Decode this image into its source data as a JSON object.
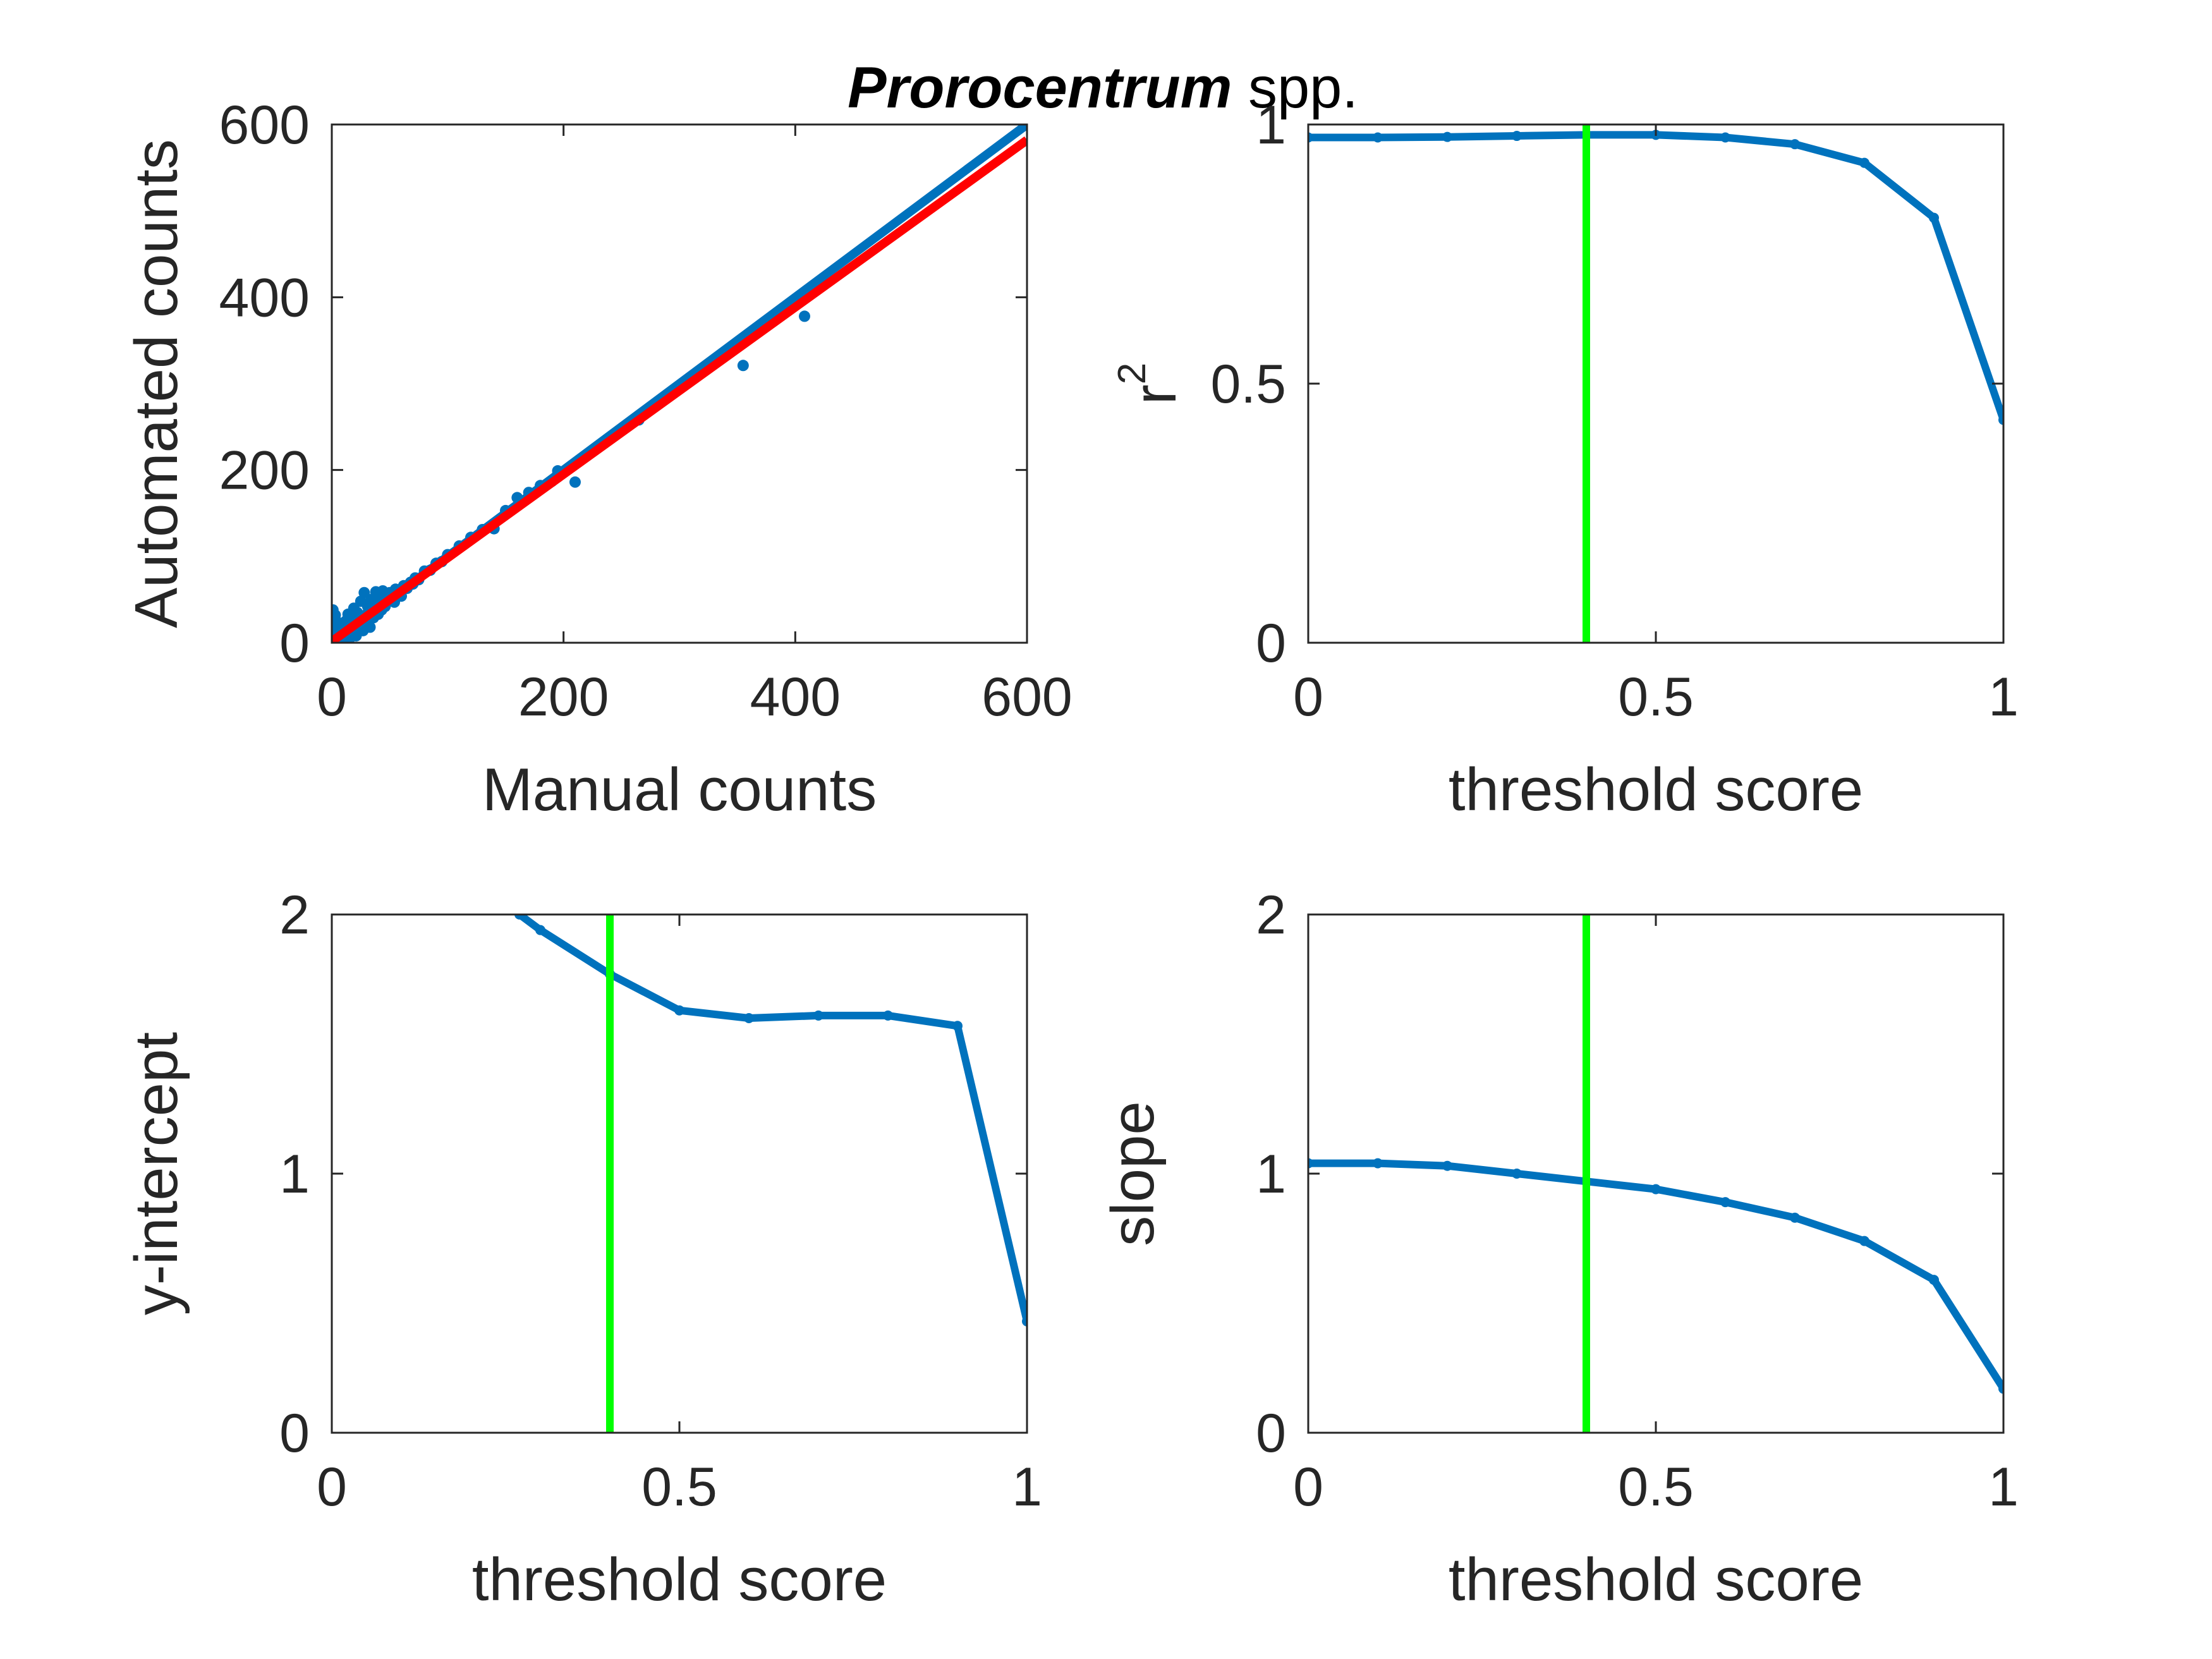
{
  "figure": {
    "title_emph": "Prorocentrum",
    "title_rest": " spp."
  },
  "chart_data": [
    {
      "type": "scatter",
      "xlabel": "Manual counts",
      "ylabel": "Automated counts",
      "xlim": [
        0,
        600
      ],
      "ylim": [
        0,
        600
      ],
      "xticks": [
        "0",
        "200",
        "400",
        "600"
      ],
      "yticks": [
        "0",
        "200",
        "400",
        "600"
      ],
      "grid": false,
      "points_color": "#0072BD",
      "points": [
        [
          0,
          0
        ],
        [
          1,
          2
        ],
        [
          2,
          5
        ],
        [
          3,
          12
        ],
        [
          2,
          18
        ],
        [
          4,
          25
        ],
        [
          3,
          32
        ],
        [
          1,
          38
        ],
        [
          5,
          8
        ],
        [
          6,
          15
        ],
        [
          7,
          22
        ],
        [
          8,
          4
        ],
        [
          9,
          11
        ],
        [
          10,
          18
        ],
        [
          11,
          3
        ],
        [
          12,
          25
        ],
        [
          13,
          9
        ],
        [
          14,
          33
        ],
        [
          15,
          16
        ],
        [
          16,
          6
        ],
        [
          17,
          28
        ],
        [
          18,
          12
        ],
        [
          19,
          40
        ],
        [
          20,
          21
        ],
        [
          21,
          8
        ],
        [
          22,
          35
        ],
        [
          23,
          17
        ],
        [
          24,
          27
        ],
        [
          25,
          48
        ],
        [
          26,
          20
        ],
        [
          27,
          14
        ],
        [
          28,
          58
        ],
        [
          29,
          32
        ],
        [
          30,
          24
        ],
        [
          31,
          42
        ],
        [
          32,
          28
        ],
        [
          33,
          18
        ],
        [
          34,
          50
        ],
        [
          35,
          36
        ],
        [
          36,
          29
        ],
        [
          37,
          44
        ],
        [
          38,
          59
        ],
        [
          39,
          39
        ],
        [
          40,
          33
        ],
        [
          41,
          52
        ],
        [
          42,
          45
        ],
        [
          43,
          38
        ],
        [
          44,
          60
        ],
        [
          45,
          47
        ],
        [
          46,
          42
        ],
        [
          47,
          55
        ],
        [
          48,
          49
        ],
        [
          50,
          58
        ],
        [
          52,
          52
        ],
        [
          54,
          47
        ],
        [
          55,
          62
        ],
        [
          57,
          57
        ],
        [
          60,
          54
        ],
        [
          62,
          66
        ],
        [
          65,
          63
        ],
        [
          68,
          70
        ],
        [
          70,
          68
        ],
        [
          72,
          75
        ],
        [
          75,
          73
        ],
        [
          80,
          83
        ],
        [
          85,
          84
        ],
        [
          90,
          92
        ],
        [
          95,
          94
        ],
        [
          100,
          102
        ],
        [
          110,
          112
        ],
        [
          120,
          122
        ],
        [
          130,
          131
        ],
        [
          140,
          132
        ],
        [
          150,
          153
        ],
        [
          160,
          168
        ],
        [
          170,
          174
        ],
        [
          180,
          182
        ],
        [
          190,
          187
        ],
        [
          195,
          199
        ],
        [
          210,
          186
        ],
        [
          265,
          258
        ],
        [
          355,
          321
        ],
        [
          408,
          378
        ]
      ],
      "lines": [
        {
          "name": "",
          "color": "#0072BD",
          "x": [
            0,
            600
          ],
          "y": [
            0,
            600
          ]
        },
        {
          "name": "",
          "color": "#FF0000",
          "x": [
            0,
            600
          ],
          "y": [
            1.5,
            582
          ]
        }
      ]
    },
    {
      "type": "line",
      "xlabel": "threshold score",
      "ylabel": "r",
      "ylabel_super": "2",
      "xlim": [
        0,
        1
      ],
      "ylim": [
        0,
        1
      ],
      "xticks": [
        "0",
        "0.5",
        "1"
      ],
      "yticks": [
        "0",
        "0.5",
        "1"
      ],
      "grid": false,
      "series": [
        {
          "name": "",
          "color": "#0072BD",
          "x": [
            0,
            0.1,
            0.2,
            0.3,
            0.4,
            0.5,
            0.6,
            0.7,
            0.8,
            0.9,
            1.0
          ],
          "y": [
            0.975,
            0.975,
            0.976,
            0.978,
            0.98,
            0.98,
            0.975,
            0.962,
            0.926,
            0.82,
            0.43
          ]
        }
      ],
      "vline": {
        "x": 0.4,
        "color": "#00FF00"
      }
    },
    {
      "type": "line",
      "xlabel": "threshold score",
      "ylabel": "y-intercept",
      "xlim": [
        0,
        1
      ],
      "ylim": [
        0,
        2
      ],
      "xticks": [
        "0",
        "0.5",
        "1"
      ],
      "yticks": [
        "0",
        "1",
        "2"
      ],
      "grid": false,
      "series": [
        {
          "name": "",
          "color": "#0072BD",
          "x": [
            0.27,
            0.3,
            0.4,
            0.5,
            0.6,
            0.7,
            0.8,
            0.9,
            1.0
          ],
          "y": [
            2.0,
            1.94,
            1.77,
            1.63,
            1.6,
            1.61,
            1.61,
            1.57,
            0.43
          ]
        }
      ],
      "vline": {
        "x": 0.4,
        "color": "#00FF00"
      }
    },
    {
      "type": "line",
      "xlabel": "threshold score",
      "ylabel": "slope",
      "xlim": [
        0,
        1
      ],
      "ylim": [
        0,
        2
      ],
      "xticks": [
        "0",
        "0.5",
        "1"
      ],
      "yticks": [
        "0",
        "1",
        "2"
      ],
      "grid": false,
      "series": [
        {
          "name": "",
          "color": "#0072BD",
          "x": [
            0,
            0.1,
            0.2,
            0.3,
            0.4,
            0.5,
            0.6,
            0.7,
            0.8,
            0.9,
            1.0
          ],
          "y": [
            1.04,
            1.04,
            1.03,
            1.0,
            0.97,
            0.94,
            0.89,
            0.83,
            0.74,
            0.59,
            0.17
          ]
        }
      ],
      "vline": {
        "x": 0.4,
        "color": "#00FF00"
      }
    }
  ]
}
